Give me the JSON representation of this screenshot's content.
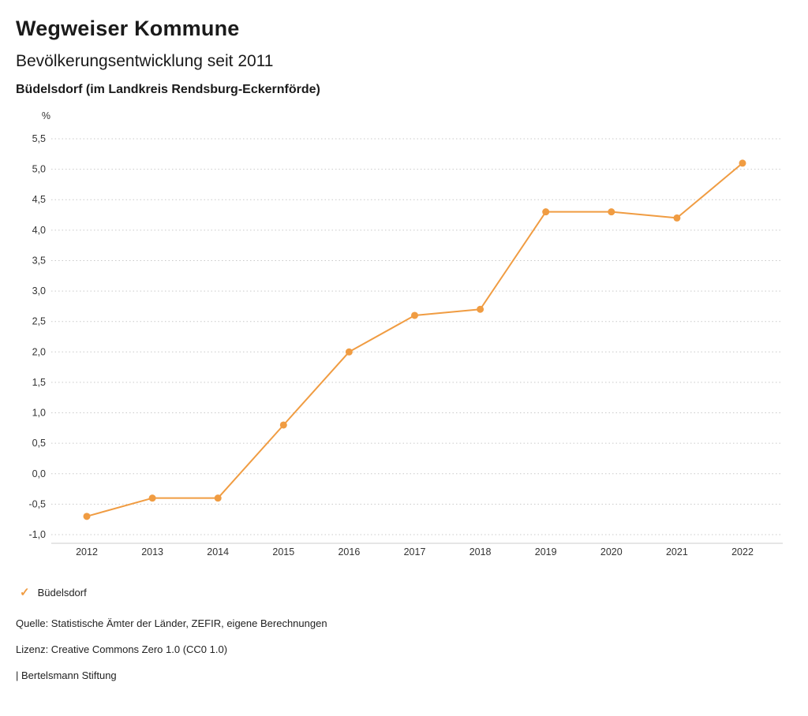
{
  "header": {
    "brand": "Wegweiser Kommune",
    "title": "Bevölkerungsentwicklung seit 2011",
    "subtitle": "Büdelsdorf (im Landkreis Rendsburg-Eckernförde)"
  },
  "chart_data": {
    "type": "line",
    "title": "Bevölkerungsentwicklung seit 2011",
    "subtitle": "Büdelsdorf (im Landkreis Rendsburg-Eckernförde)",
    "unit_label": "%",
    "xlabel": "",
    "ylabel": "%",
    "categories": [
      "2012",
      "2013",
      "2014",
      "2015",
      "2016",
      "2017",
      "2018",
      "2019",
      "2020",
      "2021",
      "2022"
    ],
    "series": [
      {
        "name": "Büdelsdorf",
        "values": [
          -0.7,
          -0.4,
          -0.4,
          0.8,
          2.0,
          2.6,
          2.7,
          4.3,
          4.3,
          4.2,
          5.1
        ],
        "color": "#f09c42"
      }
    ],
    "ylim": [
      -1.0,
      5.5
    ],
    "y_ticks": [
      5.5,
      5.0,
      4.5,
      4.0,
      3.5,
      3.0,
      2.5,
      2.0,
      1.5,
      1.0,
      0.5,
      0.0,
      -0.5,
      -1.0
    ],
    "y_tick_labels": [
      "5,5",
      "5,0",
      "4,5",
      "4,0",
      "3,5",
      "3,0",
      "2,5",
      "2,0",
      "1,5",
      "1,0",
      "0,5",
      "0,0",
      "-0,5",
      "-1,0"
    ],
    "grid": "dotted-horizontal",
    "legend_position": "bottom-left",
    "grid_color": "#c9c9c9",
    "tick_text_color": "#333333"
  },
  "legend": {
    "items": [
      {
        "icon": "check-icon",
        "glyph": "✓",
        "label": "Büdelsdorf",
        "color": "#f09c42"
      }
    ]
  },
  "footer": {
    "source": "Quelle: Statistische Ämter der Länder, ZEFIR, eigene Berechnungen",
    "license": "Lizenz: Creative Commons Zero 1.0 (CC0 1.0)",
    "attribution": "| Bertelsmann Stiftung"
  }
}
